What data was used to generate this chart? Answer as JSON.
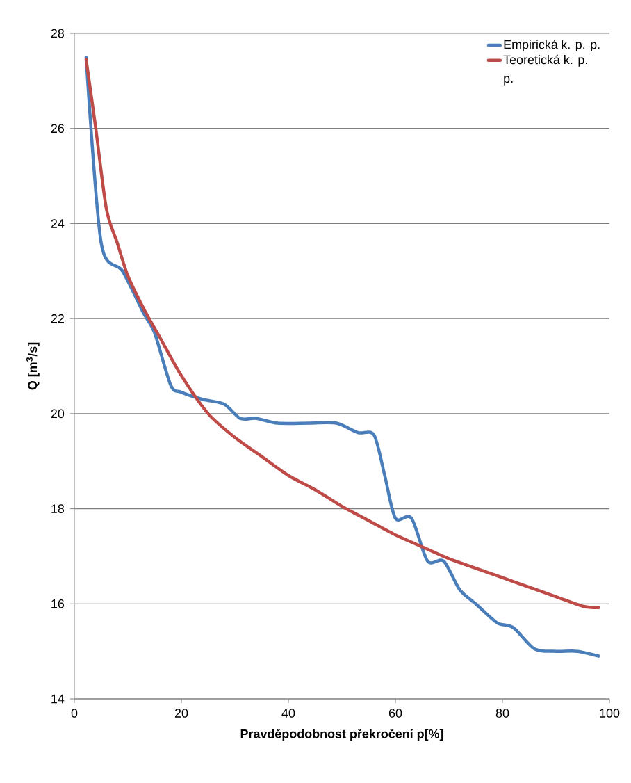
{
  "chart_data": {
    "type": "line",
    "xlabel": "Pravděpodobnost překročení p[%]",
    "ylabel": "Q [m$^{3}$/s]",
    "xlim": [
      0,
      100
    ],
    "xticks": [
      0,
      20,
      40,
      60,
      80,
      100
    ],
    "ylim": [
      14,
      28
    ],
    "yticks": [
      14,
      16,
      18,
      20,
      22,
      24,
      26,
      28
    ],
    "grid": "y",
    "legend": "top right",
    "marker": "none",
    "line_style": "solid",
    "series": [
      {
        "name": "Empirická k. p. p.",
        "color": "#4a7ebb",
        "x": [
          2.2,
          5,
          9,
          13,
          15,
          18,
          20,
          24,
          28,
          31,
          34,
          38,
          44,
          49,
          53,
          56,
          58,
          60,
          63,
          66,
          69,
          72,
          75,
          79,
          82,
          86,
          90,
          94,
          98
        ],
        "values": [
          27.5,
          23.6,
          23.0,
          22.1,
          21.7,
          20.6,
          20.45,
          20.3,
          20.2,
          19.9,
          19.9,
          19.8,
          19.8,
          19.8,
          19.6,
          19.55,
          18.7,
          17.8,
          17.8,
          16.9,
          16.9,
          16.3,
          16.0,
          15.6,
          15.5,
          15.05,
          15.0,
          15.0,
          14.9
        ]
      },
      {
        "name": "Teoretická k. p. p.",
        "color": "#be4b48",
        "x": [
          2.2,
          4,
          6,
          8,
          10,
          13,
          16,
          20,
          25,
          30,
          35,
          40,
          45,
          50,
          55,
          60,
          65,
          70,
          75,
          80,
          85,
          90,
          95,
          98
        ],
        "values": [
          27.45,
          26.0,
          24.3,
          23.6,
          22.9,
          22.2,
          21.6,
          20.8,
          20.0,
          19.5,
          19.1,
          18.7,
          18.4,
          18.05,
          17.75,
          17.45,
          17.2,
          16.95,
          16.75,
          16.55,
          16.35,
          16.15,
          15.95,
          15.92
        ]
      }
    ]
  }
}
